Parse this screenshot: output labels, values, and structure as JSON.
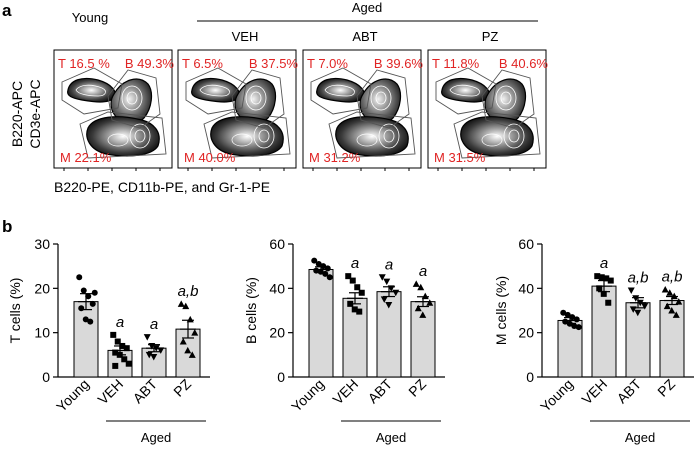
{
  "panel_a": {
    "letter": "a",
    "aged_label": "Aged",
    "groups": [
      "Young",
      "VEH",
      "ABT",
      "PZ"
    ],
    "y_axis_label_1": "B220-APC",
    "y_axis_label_2": "CD3e-APC",
    "x_axis_label": "B220-PE, CD11b-PE, and Gr-1-PE",
    "plots": [
      {
        "t": "T 16.5 %",
        "b": "B 49.3%",
        "m": "M 22.1%"
      },
      {
        "t": "T 6.5%",
        "b": "B 37.5%",
        "m": "M 40.0%"
      },
      {
        "t": "T 7.0%",
        "b": "B 39.6%",
        "m": "M 31.2%"
      },
      {
        "t": "T 11.8%",
        "b": "B 40.6%",
        "m": "M 31.5%"
      }
    ]
  },
  "panel_b": {
    "letter": "b",
    "aged_label": "Aged"
  },
  "chart_data": [
    {
      "type": "bar",
      "ylabel": "T cells (%)",
      "categories": [
        "Young",
        "VEH",
        "ABT",
        "PZ"
      ],
      "values": [
        17.0,
        6.0,
        6.5,
        10.8
      ],
      "errors": [
        1.8,
        1.0,
        0.8,
        2.0
      ],
      "significance": [
        "",
        "a",
        "a",
        "a,b"
      ],
      "ylim": [
        0,
        30
      ],
      "yticks": [
        0,
        10,
        20,
        30
      ],
      "points": [
        [
          22.5,
          19.5,
          18.2,
          16.5,
          15.5,
          13.0,
          12.5,
          19.0
        ],
        [
          9.5,
          8.0,
          7.0,
          6.5,
          5.5,
          5.0,
          4.0,
          3.0,
          2.5
        ],
        [
          9.0,
          7.0,
          6.5,
          6.0,
          5.0,
          4.5
        ],
        [
          16.5,
          16.0,
          13.0,
          10.0,
          8.0,
          6.0,
          5.0
        ]
      ]
    },
    {
      "type": "bar",
      "ylabel": "B cells (%)",
      "categories": [
        "Young",
        "VEH",
        "ABT",
        "PZ"
      ],
      "values": [
        48.5,
        35.5,
        38.5,
        34.0
      ],
      "errors": [
        1.2,
        2.5,
        2.2,
        2.2
      ],
      "significance": [
        "",
        "a",
        "a",
        "a"
      ],
      "ylim": [
        0,
        60
      ],
      "yticks": [
        0,
        20,
        40,
        60
      ],
      "points": [
        [
          52.5,
          51.0,
          50.0,
          49.0,
          48.0,
          47.5,
          46.5,
          45.0
        ],
        [
          45.5,
          43.5,
          40.5,
          38.0,
          33.0,
          30.5,
          29.5
        ],
        [
          45.0,
          43.0,
          40.0,
          38.0,
          35.0,
          32.5
        ],
        [
          42.0,
          40.5,
          36.5,
          33.5,
          31.0,
          28.0
        ]
      ]
    },
    {
      "type": "bar",
      "ylabel": "M cells (%)",
      "categories": [
        "Young",
        "VEH",
        "ABT",
        "PZ"
      ],
      "values": [
        25.5,
        41.0,
        33.5,
        34.5
      ],
      "errors": [
        1.3,
        2.5,
        2.3,
        1.8
      ],
      "significance": [
        "",
        "a",
        "a,b",
        "a,b"
      ],
      "ylim": [
        0,
        60
      ],
      "yticks": [
        0,
        20,
        40,
        60
      ],
      "points": [
        [
          29.0,
          28.0,
          27.0,
          26.0,
          25.0,
          24.0,
          23.0,
          22.5
        ],
        [
          45.5,
          45.0,
          44.5,
          43.5,
          40.0,
          37.5,
          33.5
        ],
        [
          39.0,
          35.5,
          33.5,
          32.0,
          30.5,
          29.0
        ],
        [
          39.5,
          38.0,
          36.5,
          34.0,
          32.0,
          30.0,
          28.0
        ]
      ]
    }
  ],
  "colors": {
    "bar_fill": "#d9d9d9",
    "accent_red": "#e02424",
    "ink": "#111111"
  }
}
